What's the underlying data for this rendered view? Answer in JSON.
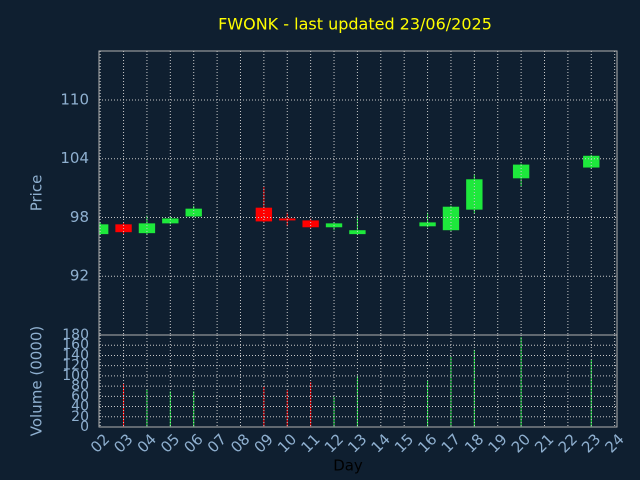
{
  "chart_data": [
    {
      "type": "candlestick",
      "title": "FWONK - last updated 23/06/2025",
      "ylabel": "Price",
      "x": [
        2,
        3,
        4,
        5,
        6,
        9,
        10,
        11,
        12,
        13,
        16,
        17,
        18,
        20,
        23
      ],
      "open": [
        96.3,
        97.3,
        96.4,
        97.4,
        98.1,
        99.0,
        97.9,
        97.7,
        97.0,
        96.3,
        97.1,
        96.7,
        98.8,
        102.0,
        103.1
      ],
      "high": [
        97.5,
        97.5,
        98.2,
        98.1,
        99.2,
        101.1,
        98.5,
        97.9,
        97.5,
        98.2,
        98.5,
        99.2,
        102.4,
        103.5,
        104.4
      ],
      "low": [
        96.2,
        96.3,
        96.2,
        97.3,
        98.0,
        97.5,
        97.1,
        96.9,
        96.7,
        96.2,
        97.0,
        96.6,
        98.4,
        101.2,
        103.0
      ],
      "close": [
        97.3,
        96.5,
        97.4,
        97.9,
        98.9,
        97.6,
        97.7,
        97.0,
        97.4,
        96.7,
        97.5,
        99.1,
        101.9,
        103.4,
        104.3
      ],
      "up_color": "#1ee83c",
      "down_color": "#ff0000",
      "xlim": [
        1.95,
        24.1
      ],
      "xticks": [
        2,
        3,
        4,
        5,
        6,
        7,
        8,
        9,
        10,
        11,
        12,
        13,
        14,
        15,
        16,
        17,
        18,
        19,
        20,
        21,
        22,
        23,
        24
      ],
      "ylim": [
        86,
        115
      ],
      "yticks": [
        92,
        98,
        104,
        110
      ],
      "grid": true
    },
    {
      "type": "bar",
      "ylabel": "Volume (0000)",
      "xlabel": "Day",
      "x": [
        2,
        3,
        4,
        5,
        6,
        9,
        10,
        11,
        12,
        13,
        16,
        17,
        18,
        20,
        23
      ],
      "values": [
        null,
        84,
        74,
        70,
        70,
        80,
        72,
        88,
        59,
        100,
        90,
        137,
        151,
        176,
        131
      ],
      "colors": [
        null,
        "#ff0000",
        "#1ee83c",
        "#1ee83c",
        "#1ee83c",
        "#ff0000",
        "#ff0000",
        "#ff0000",
        "#1ee83c",
        "#1ee83c",
        "#1ee83c",
        "#1ee83c",
        "#1ee83c",
        "#1ee83c",
        "#1ee83c"
      ],
      "xlim": [
        1.95,
        24.1
      ],
      "xticks": [
        {
          "value": 2,
          "label": "02"
        },
        {
          "value": 3,
          "label": "03"
        },
        {
          "value": 4,
          "label": "04"
        },
        {
          "value": 5,
          "label": "05"
        },
        {
          "value": 6,
          "label": "06"
        },
        {
          "value": 7,
          "label": "07"
        },
        {
          "value": 8,
          "label": "08"
        },
        {
          "value": 9,
          "label": "09"
        },
        10,
        11,
        12,
        13,
        14,
        15,
        16,
        17,
        18,
        19,
        20,
        21,
        22,
        23,
        24
      ],
      "ylim": [
        0,
        180
      ],
      "yticks": [
        0,
        20,
        40,
        60,
        80,
        100,
        120,
        140,
        160,
        180
      ],
      "grid": true
    }
  ]
}
